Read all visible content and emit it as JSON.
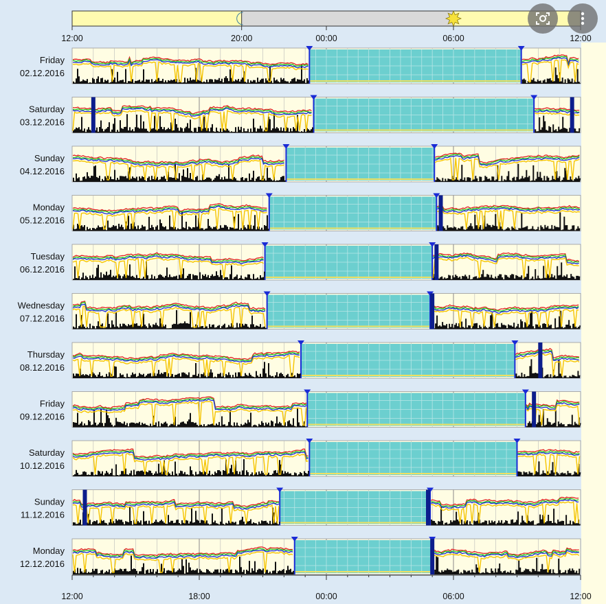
{
  "chart_data": {
    "type": "line",
    "xlabel": "",
    "ylabel": "",
    "time_axis": {
      "start": "12:00",
      "end": "12:00 (next day)",
      "span_hours": 24
    },
    "top_ticks": [
      "12:00",
      "20:00",
      "00:00",
      "06:00",
      "12:00"
    ],
    "top_ticks_hours": [
      0,
      8,
      12,
      18,
      24
    ],
    "bottom_ticks": [
      "12:00",
      "18:00",
      "00:00",
      "06:00",
      "12:00"
    ],
    "bottom_ticks_hours": [
      0,
      6,
      12,
      18,
      24
    ],
    "sun_bar": {
      "moon_at_hours": 8,
      "sun_at_hours": 18,
      "night_band_hours": [
        8,
        18
      ]
    },
    "days": [
      {
        "day": "Friday",
        "date": "02.12.2016",
        "sleep_start_h": 11.2,
        "sleep_end_h": 21.2,
        "markers_h": [],
        "seed": 11
      },
      {
        "day": "Saturday",
        "date": "03.12.2016",
        "sleep_start_h": 11.4,
        "sleep_end_h": 21.8,
        "markers_h": [
          1.0,
          23.6
        ],
        "seed": 23
      },
      {
        "day": "Sunday",
        "date": "04.12.2016",
        "sleep_start_h": 10.1,
        "sleep_end_h": 17.1,
        "markers_h": [],
        "seed": 37
      },
      {
        "day": "Monday",
        "date": "05.12.2016",
        "sleep_start_h": 9.3,
        "sleep_end_h": 17.2,
        "markers_h": [
          17.4
        ],
        "seed": 41
      },
      {
        "day": "Tuesday",
        "date": "06.12.2016",
        "sleep_start_h": 9.1,
        "sleep_end_h": 17.0,
        "markers_h": [
          17.2
        ],
        "seed": 53
      },
      {
        "day": "Wednesday",
        "date": "07.12.2016",
        "sleep_start_h": 9.2,
        "sleep_end_h": 16.9,
        "markers_h": [
          17.0
        ],
        "seed": 67
      },
      {
        "day": "Thursday",
        "date": "08.12.2016",
        "sleep_start_h": 10.8,
        "sleep_end_h": 20.9,
        "markers_h": [
          22.1
        ],
        "seed": 71
      },
      {
        "day": "Friday",
        "date": "09.12.2016",
        "sleep_start_h": 11.1,
        "sleep_end_h": 21.4,
        "markers_h": [
          21.8
        ],
        "seed": 83
      },
      {
        "day": "Saturday",
        "date": "10.12.2016",
        "sleep_start_h": 11.2,
        "sleep_end_h": 21.0,
        "markers_h": [],
        "seed": 97
      },
      {
        "day": "Sunday",
        "date": "11.12.2016",
        "sleep_start_h": 9.8,
        "sleep_end_h": 16.9,
        "markers_h": [
          0.6,
          16.8
        ],
        "seed": 101
      },
      {
        "day": "Monday",
        "date": "12.12.2016",
        "sleep_start_h": 10.5,
        "sleep_end_h": 17.0,
        "markers_h": [
          17.0
        ],
        "seed": 113
      }
    ],
    "colors": {
      "page_bg": "#dce9f5",
      "panel_bg": "#fffde3",
      "sleep_fill": "#6ccfcf",
      "grid": "#b9b9b9",
      "series_red": "#e02020",
      "series_green": "#1ec41e",
      "series_blue": "#1a2bd6",
      "series_yellow": "#f5c400",
      "activity": "#111111",
      "marker": "#0d1e8c",
      "sun_bar_day": "#fffbb0",
      "sun_bar_night": "#d9d9d9"
    }
  },
  "toolbar": {
    "lens_icon": "lens-icon",
    "more_icon": "more-vert-icon"
  }
}
